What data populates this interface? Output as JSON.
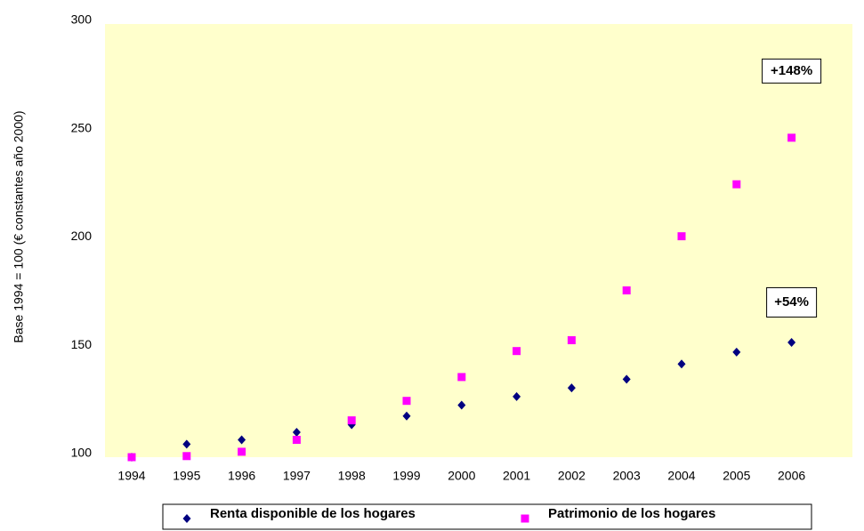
{
  "chart_data": {
    "type": "scatter",
    "y_axis_label": "Base 1994 = 100 (€ constantes año 2000)",
    "categories": [
      "1994",
      "1995",
      "1996",
      "1997",
      "1998",
      "1999",
      "2000",
      "2001",
      "2002",
      "2003",
      "2004",
      "2005",
      "2006"
    ],
    "series": [
      {
        "name": "Renta disponible de los hogares",
        "color": "#000080",
        "marker": "diamond",
        "values": [
          100,
          106,
          108,
          111.5,
          115,
          119,
          124,
          128,
          132,
          136,
          143,
          148.5,
          153
        ]
      },
      {
        "name": "Patrimonio de los hogares",
        "color": "#ff00ff",
        "marker": "square",
        "values": [
          100,
          100.5,
          102.5,
          108,
          117,
          126,
          137,
          149,
          154,
          177,
          202,
          226,
          247.5
        ]
      }
    ],
    "annotations": [
      "+148%",
      "+54%"
    ],
    "ylim": [
      100,
      300
    ],
    "yticks": [
      100,
      150,
      200,
      250,
      300
    ],
    "plot_background": "#ffffcc",
    "legend": "bottom"
  }
}
